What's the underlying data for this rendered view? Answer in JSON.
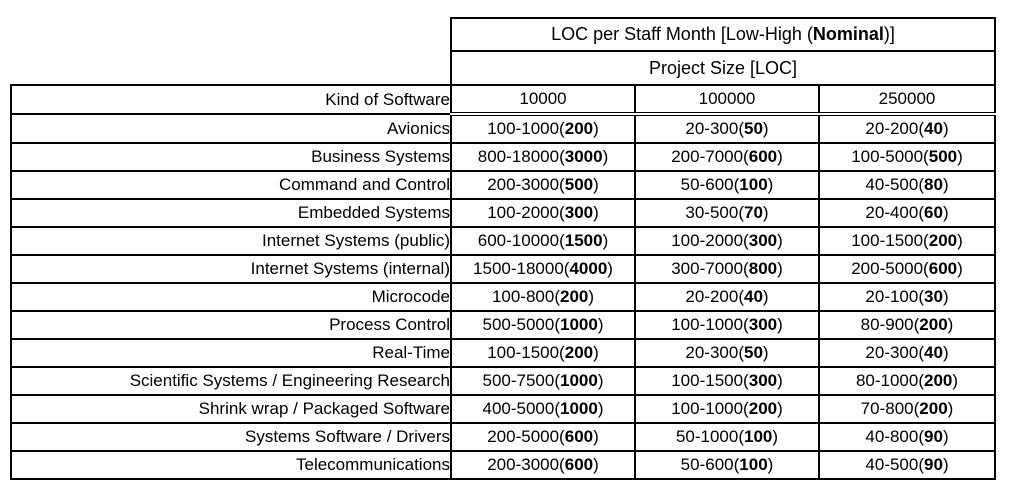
{
  "colors": {
    "border": "#000000",
    "text": "#000000",
    "page_background": "#ffffff"
  },
  "table": {
    "title": {
      "prefix": "LOC per Staff Month [Low-High (",
      "bold": "Nominal",
      "suffix": ")]"
    },
    "subtitle": "Project Size [LOC]",
    "row_header": "Kind of Software",
    "columns": [
      "10000",
      "100000",
      "250000"
    ],
    "rows": [
      {
        "kind": "Avionics",
        "cells": [
          {
            "range": "100-1000",
            "nominal": "200"
          },
          {
            "range": "20-300",
            "nominal": "50"
          },
          {
            "range": "20-200",
            "nominal": "40"
          }
        ]
      },
      {
        "kind": "Business Systems",
        "cells": [
          {
            "range": "800-18000",
            "nominal": "3000"
          },
          {
            "range": "200-7000",
            "nominal": "600"
          },
          {
            "range": "100-5000",
            "nominal": "500"
          }
        ]
      },
      {
        "kind": "Command and Control",
        "cells": [
          {
            "range": "200-3000",
            "nominal": "500"
          },
          {
            "range": "50-600",
            "nominal": "100"
          },
          {
            "range": "40-500",
            "nominal": "80"
          }
        ]
      },
      {
        "kind": "Embedded Systems",
        "cells": [
          {
            "range": "100-2000",
            "nominal": "300"
          },
          {
            "range": "30-500",
            "nominal": "70"
          },
          {
            "range": "20-400",
            "nominal": "60"
          }
        ]
      },
      {
        "kind": "Internet Systems (public)",
        "cells": [
          {
            "range": "600-10000",
            "nominal": "1500"
          },
          {
            "range": "100-2000",
            "nominal": "300"
          },
          {
            "range": "100-1500",
            "nominal": "200"
          }
        ]
      },
      {
        "kind": "Internet Systems (internal)",
        "cells": [
          {
            "range": "1500-18000",
            "nominal": "4000"
          },
          {
            "range": "300-7000",
            "nominal": "800"
          },
          {
            "range": "200-5000",
            "nominal": "600"
          }
        ]
      },
      {
        "kind": "Microcode",
        "cells": [
          {
            "range": "100-800",
            "nominal": "200"
          },
          {
            "range": "20-200",
            "nominal": "40"
          },
          {
            "range": "20-100",
            "nominal": "30"
          }
        ]
      },
      {
        "kind": "Process Control",
        "cells": [
          {
            "range": "500-5000",
            "nominal": "1000"
          },
          {
            "range": "100-1000",
            "nominal": "300"
          },
          {
            "range": "80-900",
            "nominal": "200"
          }
        ]
      },
      {
        "kind": "Real-Time",
        "cells": [
          {
            "range": "100-1500",
            "nominal": "200"
          },
          {
            "range": "20-300",
            "nominal": "50"
          },
          {
            "range": "20-300",
            "nominal": "40"
          }
        ]
      },
      {
        "kind": "Scientific Systems / Engineering Research",
        "cells": [
          {
            "range": "500-7500",
            "nominal": "1000"
          },
          {
            "range": "100-1500",
            "nominal": "300"
          },
          {
            "range": "80-1000",
            "nominal": "200"
          }
        ]
      },
      {
        "kind": "Shrink wrap / Packaged Software",
        "cells": [
          {
            "range": "400-5000",
            "nominal": "1000"
          },
          {
            "range": "100-1000",
            "nominal": "200"
          },
          {
            "range": "70-800",
            "nominal": "200"
          }
        ]
      },
      {
        "kind": "Systems Software / Drivers",
        "cells": [
          {
            "range": "200-5000",
            "nominal": "600"
          },
          {
            "range": "50-1000",
            "nominal": "100"
          },
          {
            "range": "40-800",
            "nominal": "90"
          }
        ]
      },
      {
        "kind": "Telecommunications",
        "cells": [
          {
            "range": "200-3000",
            "nominal": "600"
          },
          {
            "range": "50-600",
            "nominal": "100"
          },
          {
            "range": "40-500",
            "nominal": "90"
          }
        ]
      }
    ]
  }
}
